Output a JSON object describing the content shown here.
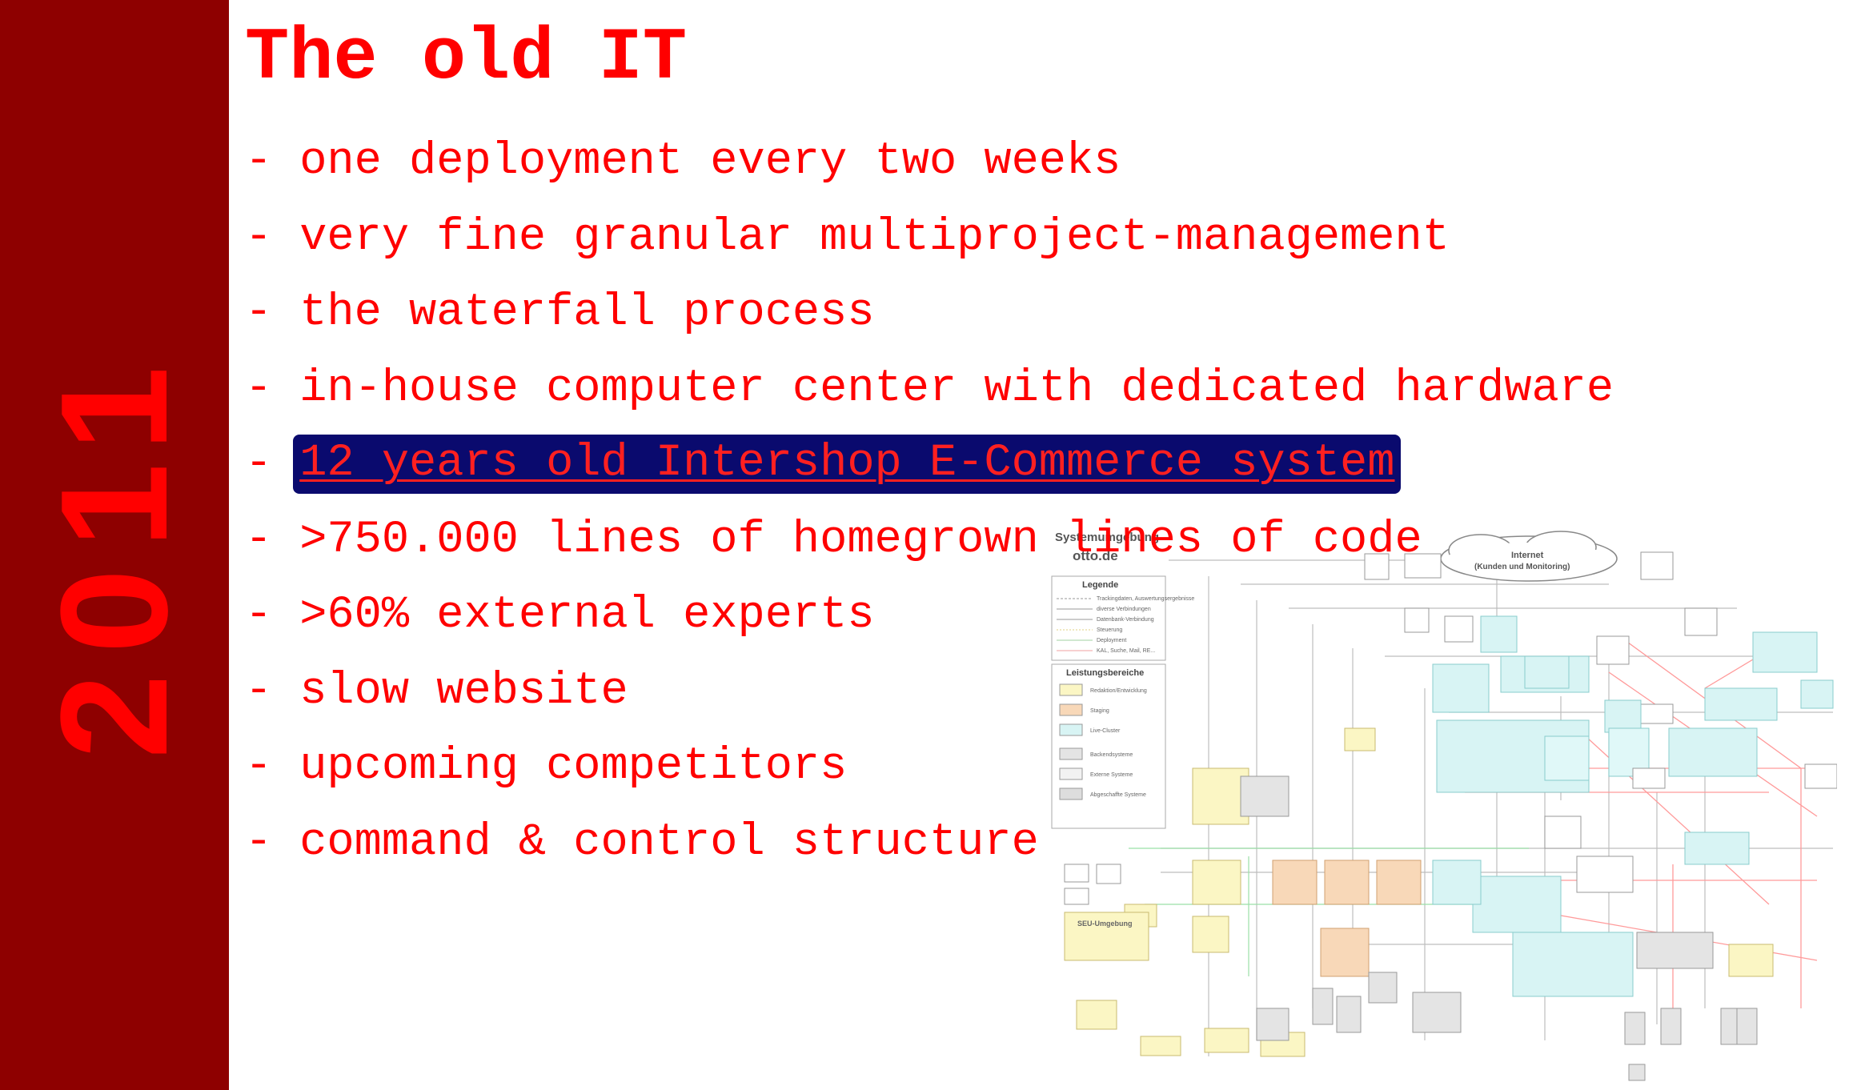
{
  "sidebar": {
    "year": "2011",
    "color": "#8e0000",
    "year_color": "#ff0000"
  },
  "slide": {
    "title": "The old IT",
    "bullets": [
      {
        "dash": "-",
        "text": "one deployment every two weeks",
        "highlighted": false
      },
      {
        "dash": "-",
        "text": "very fine granular multiproject-management",
        "highlighted": false
      },
      {
        "dash": "-",
        "text": "the waterfall process",
        "highlighted": false
      },
      {
        "dash": "-",
        "text": "in-house computer center with dedicated hardware",
        "highlighted": false
      },
      {
        "dash": "-",
        "text": "12 years old Intershop E-Commerce system",
        "highlighted": true
      },
      {
        "dash": "-",
        "text": ">750.000 lines of homegrown lines of code",
        "highlighted": false
      },
      {
        "dash": "-",
        "text": ">60% external experts",
        "highlighted": false
      },
      {
        "dash": "-",
        "text": "slow website",
        "highlighted": false
      },
      {
        "dash": "-",
        "text": "upcoming competitors",
        "highlighted": false
      },
      {
        "dash": "-",
        "text": "command & control structure",
        "highlighted": false
      }
    ]
  },
  "diagram": {
    "heading": "Systemumgebung",
    "subheading": "otto.de",
    "legend_title": "Legende",
    "legend_items": [
      "Trackingdaten, Auswertungsergebnisse",
      "diverse Verbindungen",
      "Datenbank-Verbindung",
      "Steuerung",
      "Deployment",
      "KAL, Suche, Mail, RE..."
    ],
    "areas_title": "Leistungsbereiche",
    "area_items": [
      "Redaktion/Entwicklung",
      "Staging",
      "Live-Cluster",
      "Backendsysteme",
      "Externe Systeme",
      "Abgeschaffte Systeme"
    ],
    "cloud_label_1": "Internet",
    "cloud_label_2": "(Kunden und Monitoring)",
    "seu_label": "SEU-Umgebung",
    "colors": {
      "staging": "#f8d8b8",
      "live": "#d8f4f4",
      "dev": "#fbf6c4",
      "ext": "#e4e4e4",
      "lines": "#ff8080"
    }
  }
}
